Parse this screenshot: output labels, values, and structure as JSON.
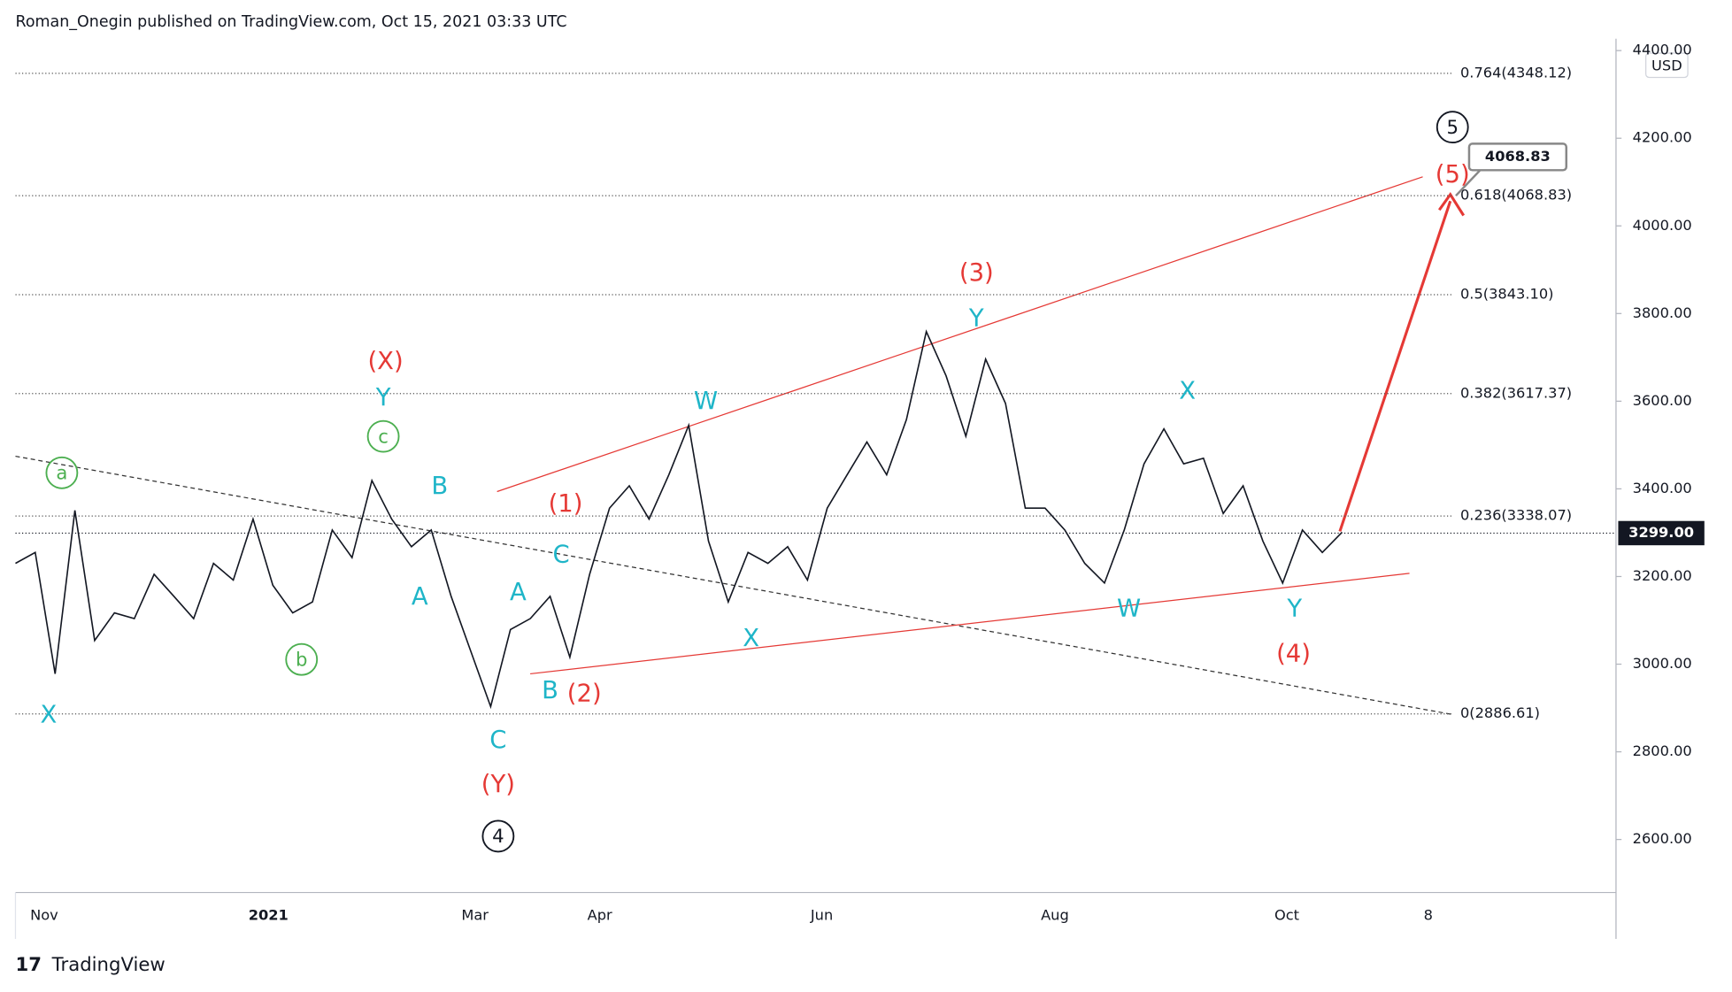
{
  "header": "Roman_Onegin published on TradingView.com, Oct 15, 2021 03:33 UTC",
  "footer": "TradingView",
  "chart_data": {
    "type": "line",
    "currency": "USD",
    "color": "#131722",
    "values": [
      3230,
      3255,
      2978,
      3351,
      3054,
      3117,
      3104,
      3205,
      3155,
      3104,
      3230,
      3192,
      3331,
      3180,
      3117,
      3142,
      3306,
      3243,
      3419,
      3331,
      3268,
      3306,
      3155,
      3029,
      2903,
      3079,
      3104,
      3155,
      3016,
      3205,
      3356,
      3407,
      3331,
      3432,
      3545,
      3281,
      3142,
      3255,
      3230,
      3268,
      3192,
      3356,
      3432,
      3507,
      3432,
      3558,
      3759,
      3658,
      3520,
      3696,
      3595,
      3356,
      3356,
      3306,
      3230,
      3185,
      3306,
      3457,
      3537,
      3457,
      3470,
      3344,
      3407,
      3281,
      3185,
      3306,
      3255,
      3301
    ],
    "ylim": [
      2479,
      4427
    ],
    "yticks": [
      {
        "value": 2600,
        "label": "2600.00"
      },
      {
        "value": 2800,
        "label": "2800.00"
      },
      {
        "value": 3000,
        "label": "3000.00"
      },
      {
        "value": 3200,
        "label": "3200.00"
      },
      {
        "value": 3400,
        "label": "3400.00"
      },
      {
        "value": 3600,
        "label": "3600.00"
      },
      {
        "value": 3800,
        "label": "3800.00"
      },
      {
        "value": 4000,
        "label": "4000.00"
      },
      {
        "value": 4200,
        "label": "4200.00"
      },
      {
        "value": 4400,
        "label": "4400.00"
      }
    ],
    "xtick_labels": [
      "Nov",
      "2021",
      "Mar",
      "Apr",
      "Jun",
      "Aug",
      "Oct",
      "8"
    ],
    "levels": [
      {
        "value": 4348.12,
        "label": "0.764(4348.12)"
      },
      {
        "value": 4068.83,
        "label": "0.618(4068.83)"
      },
      {
        "value": 3843.1,
        "label": "0.5(3843.10)"
      },
      {
        "value": 3617.37,
        "label": "0.382(3617.37)"
      },
      {
        "value": 3338.07,
        "label": "0.236(3338.07)"
      },
      {
        "value": 2886.61,
        "label": "0(2886.61)"
      }
    ],
    "last_price": {
      "value": 3299,
      "label": "3299.00"
    },
    "target": {
      "value": 4068.83,
      "label": "4068.83"
    },
    "annotations": [
      {
        "text": "X",
        "color": "#1fb5c8"
      },
      {
        "text": "a",
        "color": "#4caf50",
        "circled": true
      },
      {
        "text": "b",
        "color": "#4caf50",
        "circled": true
      },
      {
        "text": "c",
        "color": "#4caf50",
        "circled": true
      },
      {
        "text": "Y",
        "color": "#1fb5c8"
      },
      {
        "text": "(X)",
        "color": "#e53935"
      },
      {
        "text": "B",
        "color": "#1fb5c8"
      },
      {
        "text": "A",
        "color": "#1fb5c8"
      },
      {
        "text": "A",
        "color": "#1fb5c8"
      },
      {
        "text": "C",
        "color": "#1fb5c8"
      },
      {
        "text": "(1)",
        "color": "#e53935"
      },
      {
        "text": "B",
        "color": "#1fb5c8"
      },
      {
        "text": "(2)",
        "color": "#e53935"
      },
      {
        "text": "C",
        "color": "#1fb5c8"
      },
      {
        "text": "(Y)",
        "color": "#e53935"
      },
      {
        "text": "4",
        "color": "#131722",
        "circled": true
      },
      {
        "text": "W",
        "color": "#1fb5c8"
      },
      {
        "text": "X",
        "color": "#1fb5c8"
      },
      {
        "text": "Y",
        "color": "#1fb5c8"
      },
      {
        "text": "(3)",
        "color": "#e53935"
      },
      {
        "text": "X",
        "color": "#1fb5c8"
      },
      {
        "text": "W",
        "color": "#1fb5c8"
      },
      {
        "text": "Y",
        "color": "#1fb5c8"
      },
      {
        "text": "(4)",
        "color": "#e53935"
      },
      {
        "text": "5",
        "color": "#131722",
        "circled": true
      },
      {
        "text": "(5)",
        "color": "#e53935"
      }
    ]
  }
}
